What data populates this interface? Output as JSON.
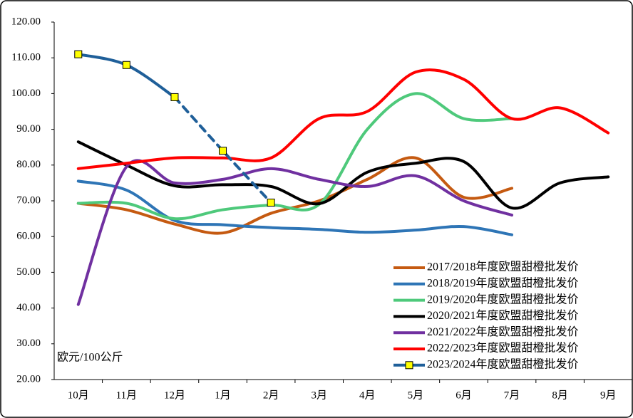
{
  "chart_data": {
    "type": "line",
    "y_label": "欧元/100公斤",
    "categories": [
      "10月",
      "11月",
      "12月",
      "1月",
      "2月",
      "3月",
      "4月",
      "5月",
      "6月",
      "7月",
      "8月",
      "9月"
    ],
    "ylim": [
      20,
      120
    ],
    "yticks": [
      {
        "value": 20,
        "label": "20.00"
      },
      {
        "value": 30,
        "label": "30.00"
      },
      {
        "value": 40,
        "label": "40.00"
      },
      {
        "value": 50,
        "label": "50.00"
      },
      {
        "value": 60,
        "label": "60.00"
      },
      {
        "value": 70,
        "label": "70.00"
      },
      {
        "value": 80,
        "label": "80.00"
      },
      {
        "value": 90,
        "label": "90.00"
      },
      {
        "value": 100,
        "label": "100.00"
      },
      {
        "value": 110,
        "label": "110.00"
      },
      {
        "value": 120,
        "label": "120.00"
      }
    ],
    "grid": false,
    "smooth": true,
    "legend": "lower right",
    "series": [
      {
        "name": "2017/2018年度欧盟甜橙批发价",
        "color": "#c55a11",
        "values": [
          69.3,
          67.5,
          63.5,
          61,
          66.5,
          70,
          76,
          82,
          71,
          73.5,
          null,
          null
        ]
      },
      {
        "name": "2018/2019年度欧盟甜橙批发价",
        "color": "#2e75b6",
        "values": [
          75.5,
          73,
          64.5,
          63.3,
          62.5,
          62,
          61.2,
          61.8,
          62.8,
          60.5,
          null,
          null
        ]
      },
      {
        "name": "2019/2020年度欧盟甜橙批发价",
        "color": "#4ec97b",
        "values": [
          69.3,
          69.3,
          65,
          67.5,
          68.8,
          69,
          90,
          100,
          93,
          93,
          null,
          null
        ]
      },
      {
        "name": "2020/2021年度欧盟甜橙批发价",
        "color": "#000000",
        "values": [
          86.5,
          80,
          74.2,
          74.5,
          74,
          69.2,
          78,
          80.5,
          81,
          68,
          75,
          76.7
        ]
      },
      {
        "name": "2021/2022年度欧盟甜橙批发价",
        "color": "#7030a0",
        "values": [
          41,
          79.5,
          75,
          76,
          79,
          76,
          74,
          77,
          70,
          66,
          null,
          null
        ]
      },
      {
        "name": "2022/2023年度欧盟甜橙批发价",
        "color": "#ff0000",
        "values": [
          79,
          80.5,
          82,
          82,
          82,
          93,
          95,
          106,
          104,
          93,
          96,
          89
        ]
      },
      {
        "name": "2023/2024年度欧盟甜橙批发价",
        "color": "#1f5f99",
        "marker": "square",
        "marker_color": "#ffff00",
        "dashed_from": 2,
        "values": [
          111,
          108,
          99,
          84,
          69.5,
          null,
          null,
          null,
          null,
          null,
          null,
          null
        ]
      }
    ]
  }
}
